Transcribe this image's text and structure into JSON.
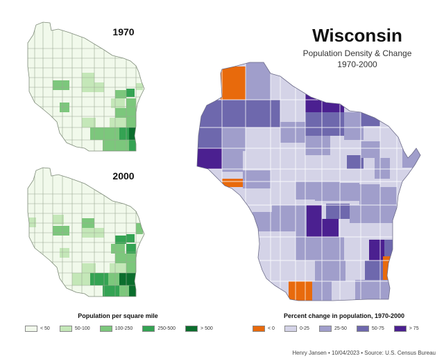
{
  "title": "Wisconsin",
  "subtitle": "Population Density & Change",
  "years": "1970-2000",
  "maps": {
    "map1970_label": "1970",
    "map2000_label": "2000"
  },
  "density_legend": {
    "title": "Population per square mile",
    "items": [
      {
        "label": "< 50",
        "color": "#f1f9eb"
      },
      {
        "label": "50-100",
        "color": "#c4e7b8"
      },
      {
        "label": "100-250",
        "color": "#7cc77c"
      },
      {
        "label": "250-500",
        "color": "#34a353"
      },
      {
        "label": "> 500",
        "color": "#0b6e2d"
      }
    ]
  },
  "change_legend": {
    "title": "Percent change in population, 1970-2000",
    "items": [
      {
        "label": "< 0",
        "color": "#e86a0c"
      },
      {
        "label": "0-25",
        "color": "#d4d3e7"
      },
      {
        "label": "25-50",
        "color": "#a09ecb"
      },
      {
        "label": "50-75",
        "color": "#6e68ad"
      },
      {
        "label": "> 75",
        "color": "#4b2090"
      }
    ]
  },
  "credit": "Henry Jansen • 10/04/2023 • Source: U.S. Census Bureau"
}
